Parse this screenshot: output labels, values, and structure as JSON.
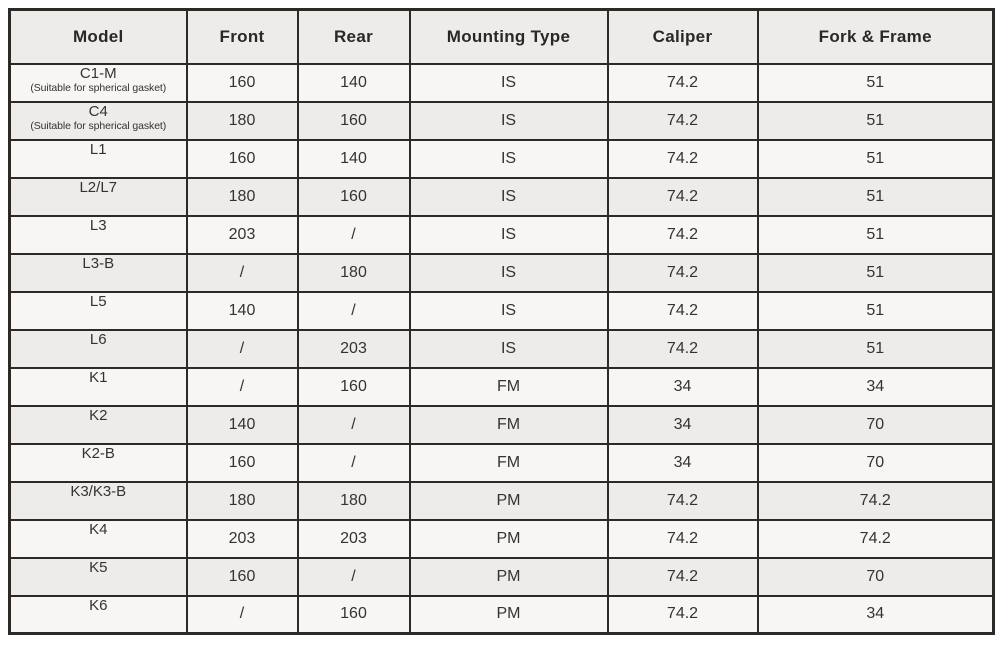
{
  "page": {
    "background": "#ffffff"
  },
  "colors": {
    "border": "#2d2a26",
    "header_background": "#edecea",
    "row_light": "#f7f6f4",
    "row_alternate": "#edecea",
    "text": "#37322d"
  },
  "table": {
    "columns": [
      "Model",
      "Front",
      "Rear",
      "Mounting Type",
      "Caliper",
      "Fork & Frame"
    ],
    "rows": [
      {
        "model": "C1-M",
        "note": "(Suitable for spherical gasket)",
        "front": "160",
        "rear": "140",
        "mounting": "IS",
        "caliper": "74.2",
        "fork_frame": "51"
      },
      {
        "model": "C4",
        "note": "(Suitable for spherical gasket)",
        "front": "180",
        "rear": "160",
        "mounting": "IS",
        "caliper": "74.2",
        "fork_frame": "51"
      },
      {
        "model": "L1",
        "front": "160",
        "rear": "140",
        "mounting": "IS",
        "caliper": "74.2",
        "fork_frame": "51"
      },
      {
        "model": "L2/L7",
        "front": "180",
        "rear": "160",
        "mounting": "IS",
        "caliper": "74.2",
        "fork_frame": "51"
      },
      {
        "model": "L3",
        "front": "203",
        "rear": "/",
        "mounting": "IS",
        "caliper": "74.2",
        "fork_frame": "51"
      },
      {
        "model": "L3-B",
        "front": "/",
        "rear": "180",
        "mounting": "IS",
        "caliper": "74.2",
        "fork_frame": "51"
      },
      {
        "model": "L5",
        "front": "140",
        "rear": "/",
        "mounting": "IS",
        "caliper": "74.2",
        "fork_frame": "51"
      },
      {
        "model": "L6",
        "front": "/",
        "rear": "203",
        "mounting": "IS",
        "caliper": "74.2",
        "fork_frame": "51"
      },
      {
        "model": "K1",
        "front": "/",
        "rear": "160",
        "mounting": "FM",
        "caliper": "34",
        "fork_frame": "34"
      },
      {
        "model": "K2",
        "front": "140",
        "rear": "/",
        "mounting": "FM",
        "caliper": "34",
        "fork_frame": "70"
      },
      {
        "model": "K2-B",
        "front": "160",
        "rear": "/",
        "mounting": "FM",
        "caliper": "34",
        "fork_frame": "70"
      },
      {
        "model": "K3/K3-B",
        "front": "180",
        "rear": "180",
        "mounting": "PM",
        "caliper": "74.2",
        "fork_frame": "74.2"
      },
      {
        "model": "K4",
        "front": "203",
        "rear": "203",
        "mounting": "PM",
        "caliper": "74.2",
        "fork_frame": "74.2"
      },
      {
        "model": "K5",
        "front": "160",
        "rear": "/",
        "mounting": "PM",
        "caliper": "74.2",
        "fork_frame": "70"
      },
      {
        "model": "K6",
        "front": "/",
        "rear": "160",
        "mounting": "PM",
        "caliper": "74.2",
        "fork_frame": "34"
      }
    ]
  }
}
